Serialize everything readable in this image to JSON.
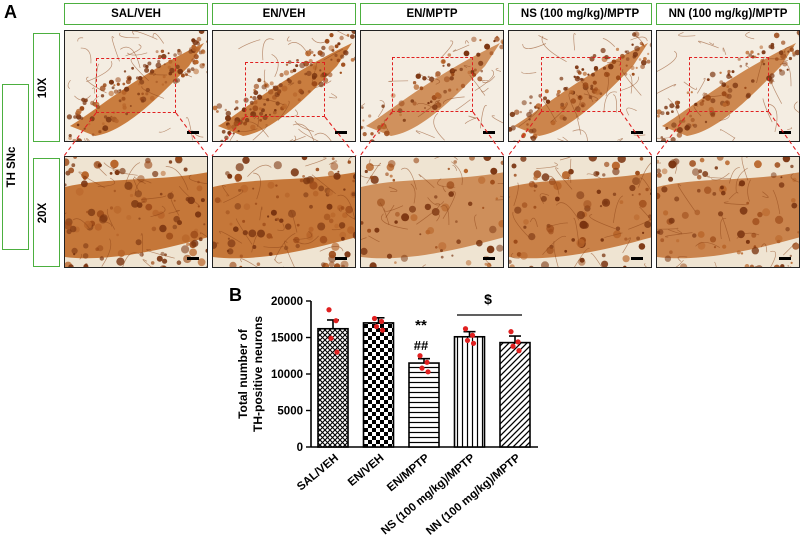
{
  "panel_a": {
    "letter": "A",
    "groups": [
      "SAL/VEH",
      "EN/VEH",
      "EN/MPTP",
      "NS (100 mg/kg)/MPTP",
      "NN (100 mg/kg)/MPTP"
    ],
    "row_label": "TH SNc",
    "magnifications": [
      "10X",
      "20X"
    ]
  },
  "panel_b": {
    "letter": "B",
    "significance": {
      "asterisks": "**",
      "hashes": "##",
      "dollar": "$"
    }
  },
  "chart_data": {
    "type": "bar",
    "ylabel": "Total number of TH-positive neurons",
    "ylim": [
      0,
      20000
    ],
    "yticks": [
      0,
      5000,
      10000,
      15000,
      20000
    ],
    "categories": [
      "SAL/VEH",
      "EN/VEH",
      "EN/MPTP",
      "NS (100 mg/kg)/MPTP",
      "NN (100 mg/kg)/MPTP"
    ],
    "values": [
      16200,
      17000,
      11500,
      15100,
      14300
    ],
    "errors": [
      1200,
      700,
      600,
      700,
      900
    ],
    "patterns": [
      "crosshatch",
      "checker",
      "horizontal",
      "vertical",
      "diagonal"
    ],
    "points": [
      [
        18800,
        17300,
        14900,
        13000
      ],
      [
        17600,
        17200,
        16500,
        16000
      ],
      [
        12500,
        11600,
        10800,
        10300
      ],
      [
        16200,
        15300,
        14600,
        14200
      ],
      [
        15800,
        14400,
        13800,
        13200
      ]
    ],
    "point_color": "#e02020"
  }
}
